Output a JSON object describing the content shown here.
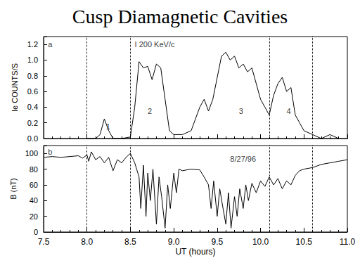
{
  "title": "Cusp Diamagnetic Cavities",
  "chart_data": [
    {
      "type": "line",
      "panel": "a",
      "ylabel": "Ie COUNTS/S",
      "tick_labels": "y",
      "color": "#000000",
      "xlim": [
        7.5,
        11.0
      ],
      "xticks": [
        7.5,
        {
          "value": 8,
          "label": "8.0"
        },
        8.5,
        {
          "value": 9,
          "label": "9.0"
        },
        9.5,
        {
          "value": 10,
          "label": "10.0"
        },
        10.5,
        {
          "value": 11,
          "label": "11.0"
        }
      ],
      "ylim": [
        0,
        1.3
      ],
      "yticks": [
        {
          "value": 0,
          "label": "0.0"
        },
        0.2,
        0.4,
        0.6,
        0.8,
        {
          "value": 1,
          "label": "1.0"
        },
        1.2
      ],
      "vlines": [
        8.0,
        8.5,
        10.1,
        10.6
      ],
      "x": [
        8.0,
        8.1,
        8.15,
        8.2,
        8.25,
        8.3,
        8.4,
        8.5,
        8.55,
        8.6,
        8.65,
        8.7,
        8.75,
        8.8,
        8.85,
        8.9,
        8.95,
        9.0,
        9.1,
        9.2,
        9.3,
        9.35,
        9.4,
        9.45,
        9.55,
        9.6,
        9.65,
        9.7,
        9.75,
        9.8,
        9.85,
        9.9,
        9.95,
        10.0,
        10.05,
        10.1,
        10.15,
        10.2,
        10.25,
        10.3,
        10.35,
        10.4,
        10.45,
        10.5,
        10.6,
        10.7,
        10.8,
        10.9
      ],
      "values": [
        0,
        0,
        0.05,
        0.25,
        0.1,
        0,
        0,
        0.02,
        0.4,
        0.98,
        0.9,
        0.92,
        0.75,
        0.95,
        0.9,
        0.5,
        0.1,
        0.05,
        0.05,
        0.1,
        0.4,
        0.5,
        0.35,
        0.5,
        1.05,
        1.1,
        1.0,
        1.05,
        0.9,
        0.95,
        0.85,
        0.9,
        0.7,
        0.5,
        0.4,
        0.3,
        0.55,
        0.7,
        0.78,
        0.6,
        0.65,
        0.3,
        0.2,
        0.1,
        0.05,
        0.0,
        0.05,
        0.0
      ],
      "annotations": [
        {
          "text": "a",
          "x": 7.55,
          "y": 1.2
        },
        {
          "text": "I 200 KeV/c",
          "x": 8.55,
          "y": 1.2
        },
        {
          "text": "1",
          "x": 8.22,
          "y": 0.15
        },
        {
          "text": "2",
          "x": 8.7,
          "y": 0.35
        },
        {
          "text": "3",
          "x": 9.75,
          "y": 0.35
        },
        {
          "text": "4",
          "x": 10.3,
          "y": 0.35
        }
      ]
    },
    {
      "type": "line",
      "panel": "b",
      "xlabel": "UT (hours)",
      "ylabel": "B (nT)",
      "color": "#000000",
      "xlim": [
        7.5,
        11.0
      ],
      "xticks": [
        7.5,
        {
          "value": 8,
          "label": "8.0"
        },
        8.5,
        {
          "value": 9,
          "label": "9.0"
        },
        9.5,
        {
          "value": 10,
          "label": "10.0"
        },
        10.5,
        {
          "value": 11,
          "label": "11.0"
        }
      ],
      "ylim": [
        0,
        110
      ],
      "yticks": [
        0,
        20,
        40,
        60,
        80,
        100
      ],
      "vlines": [
        8.0,
        8.5,
        10.1,
        10.6
      ],
      "x": [
        7.5,
        7.6,
        7.7,
        7.8,
        7.9,
        7.95,
        8.0,
        8.02,
        8.05,
        8.1,
        8.15,
        8.2,
        8.25,
        8.3,
        8.35,
        8.4,
        8.45,
        8.5,
        8.55,
        8.6,
        8.62,
        8.65,
        8.68,
        8.7,
        8.73,
        8.76,
        8.8,
        8.83,
        8.86,
        8.9,
        8.93,
        8.96,
        9.0,
        9.03,
        9.06,
        9.1,
        9.2,
        9.3,
        9.35,
        9.4,
        9.43,
        9.46,
        9.5,
        9.53,
        9.56,
        9.6,
        9.63,
        9.66,
        9.7,
        9.73,
        9.76,
        9.8,
        9.83,
        9.86,
        9.9,
        9.95,
        10.0,
        10.05,
        10.1,
        10.15,
        10.2,
        10.25,
        10.3,
        10.35,
        10.4,
        10.45,
        10.5,
        10.6,
        10.7,
        10.8,
        10.9,
        11.0
      ],
      "values": [
        95,
        96,
        95,
        96,
        97,
        94,
        98,
        90,
        102,
        92,
        96,
        88,
        95,
        78,
        92,
        88,
        95,
        100,
        88,
        70,
        30,
        85,
        20,
        75,
        40,
        80,
        10,
        70,
        45,
        5,
        60,
        30,
        75,
        50,
        80,
        78,
        80,
        79,
        70,
        60,
        30,
        65,
        20,
        55,
        35,
        10,
        50,
        5,
        45,
        20,
        55,
        30,
        60,
        40,
        62,
        50,
        65,
        58,
        70,
        60,
        68,
        55,
        65,
        60,
        72,
        78,
        80,
        82,
        86,
        88,
        90,
        92
      ],
      "annotations": [
        {
          "text": "b",
          "x": 7.55,
          "y": 102
        },
        {
          "text": "8/27/96",
          "x": 9.65,
          "y": 93
        }
      ]
    }
  ]
}
